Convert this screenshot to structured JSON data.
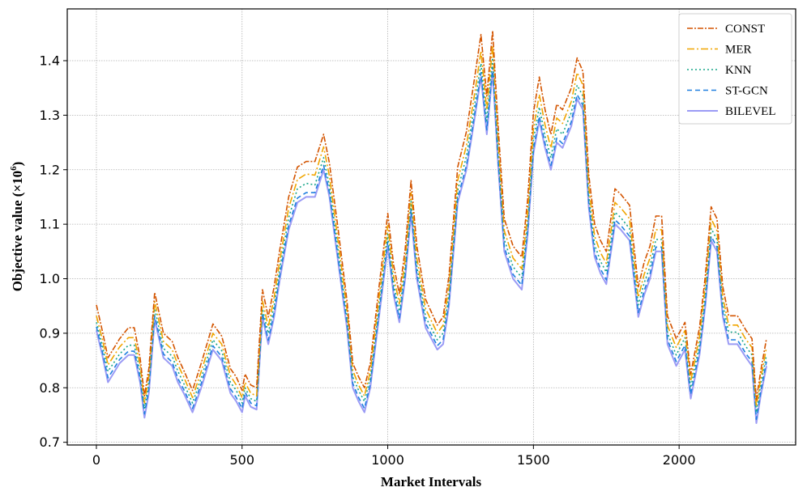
{
  "chart_data": {
    "type": "line",
    "title": "",
    "xlabel": "Market Intervals",
    "ylabel": "Objective value (×10",
    "ylabel_exp": "6",
    "ylabel_close": ")",
    "xlim": [
      -100,
      2400
    ],
    "ylim": [
      0.695,
      1.495
    ],
    "x_ticks": [
      0,
      500,
      1000,
      1500,
      2000
    ],
    "y_ticks": [
      0.7,
      0.8,
      0.9,
      1.0,
      1.1,
      1.2,
      1.3,
      1.4
    ],
    "grid": true,
    "legend_position": "top-right",
    "x": [
      0,
      20,
      40,
      80,
      110,
      130,
      150,
      165,
      180,
      200,
      230,
      260,
      280,
      300,
      330,
      360,
      400,
      430,
      460,
      480,
      500,
      510,
      530,
      550,
      570,
      590,
      610,
      630,
      660,
      690,
      720,
      750,
      780,
      800,
      830,
      860,
      880,
      900,
      920,
      940,
      970,
      1000,
      1020,
      1040,
      1060,
      1080,
      1100,
      1130,
      1170,
      1190,
      1210,
      1240,
      1270,
      1300,
      1320,
      1340,
      1360,
      1380,
      1400,
      1430,
      1460,
      1480,
      1500,
      1520,
      1540,
      1560,
      1580,
      1600,
      1630,
      1650,
      1670,
      1690,
      1710,
      1730,
      1750,
      1780,
      1800,
      1830,
      1860,
      1880,
      1900,
      1920,
      1940,
      1960,
      1990,
      2020,
      2040,
      2070,
      2090,
      2110,
      2130,
      2150,
      2170,
      2200,
      2230,
      2250,
      2265,
      2280,
      2300
    ],
    "series": [
      {
        "name": "BILEVEL",
        "color": "#9b9bf5",
        "dash": "solid",
        "values": [
          0.905,
          0.86,
          0.81,
          0.845,
          0.86,
          0.86,
          0.81,
          0.745,
          0.79,
          0.925,
          0.855,
          0.84,
          0.81,
          0.79,
          0.755,
          0.8,
          0.87,
          0.85,
          0.79,
          0.775,
          0.755,
          0.785,
          0.765,
          0.76,
          0.93,
          0.88,
          0.93,
          1.0,
          1.09,
          1.14,
          1.15,
          1.15,
          1.2,
          1.15,
          1.03,
          0.91,
          0.8,
          0.775,
          0.755,
          0.8,
          0.93,
          1.06,
          0.97,
          0.92,
          1.0,
          1.12,
          1.0,
          0.91,
          0.87,
          0.88,
          0.95,
          1.14,
          1.2,
          1.3,
          1.37,
          1.265,
          1.38,
          1.2,
          1.05,
          1.0,
          0.98,
          1.08,
          1.23,
          1.29,
          1.24,
          1.2,
          1.25,
          1.24,
          1.28,
          1.33,
          1.31,
          1.13,
          1.04,
          1.01,
          0.99,
          1.1,
          1.09,
          1.07,
          0.93,
          0.97,
          1.0,
          1.05,
          1.05,
          0.88,
          0.84,
          0.87,
          0.78,
          0.86,
          0.95,
          1.07,
          1.05,
          0.93,
          0.88,
          0.88,
          0.855,
          0.84,
          0.735,
          0.785,
          0.84
        ]
      },
      {
        "name": "ST-GCN",
        "color": "#1f7fe0",
        "dash": "6,4",
        "values": [
          0.912,
          0.867,
          0.818,
          0.852,
          0.867,
          0.867,
          0.818,
          0.752,
          0.798,
          0.932,
          0.862,
          0.847,
          0.817,
          0.797,
          0.762,
          0.808,
          0.877,
          0.857,
          0.798,
          0.782,
          0.762,
          0.792,
          0.772,
          0.767,
          0.937,
          0.887,
          0.938,
          1.008,
          1.098,
          1.148,
          1.158,
          1.158,
          1.208,
          1.158,
          1.038,
          0.918,
          0.808,
          0.782,
          0.762,
          0.807,
          0.938,
          1.068,
          0.978,
          0.928,
          1.008,
          1.128,
          1.008,
          0.918,
          0.877,
          0.888,
          0.958,
          1.148,
          1.208,
          1.308,
          1.378,
          1.273,
          1.388,
          1.208,
          1.058,
          1.008,
          0.988,
          1.088,
          1.238,
          1.298,
          1.248,
          1.208,
          1.258,
          1.248,
          1.288,
          1.338,
          1.318,
          1.138,
          1.048,
          1.018,
          0.998,
          1.108,
          1.098,
          1.078,
          0.938,
          0.978,
          1.008,
          1.058,
          1.058,
          0.888,
          0.848,
          0.878,
          0.788,
          0.868,
          0.958,
          1.078,
          1.058,
          0.938,
          0.888,
          0.888,
          0.862,
          0.848,
          0.742,
          0.792,
          0.848
        ]
      },
      {
        "name": "KNN",
        "color": "#17a589",
        "dash": "2,3",
        "values": [
          0.92,
          0.878,
          0.83,
          0.862,
          0.878,
          0.878,
          0.83,
          0.762,
          0.81,
          0.945,
          0.872,
          0.858,
          0.83,
          0.808,
          0.772,
          0.818,
          0.888,
          0.868,
          0.81,
          0.795,
          0.772,
          0.8,
          0.78,
          0.775,
          0.945,
          0.9,
          0.95,
          1.02,
          1.112,
          1.165,
          1.175,
          1.172,
          1.222,
          1.17,
          1.052,
          0.93,
          0.82,
          0.795,
          0.775,
          0.818,
          0.95,
          1.082,
          0.99,
          0.94,
          1.02,
          1.142,
          1.022,
          0.93,
          0.888,
          0.9,
          0.97,
          1.162,
          1.225,
          1.325,
          1.395,
          1.29,
          1.405,
          1.225,
          1.072,
          1.022,
          1.002,
          1.102,
          1.255,
          1.315,
          1.262,
          1.222,
          1.275,
          1.265,
          1.305,
          1.355,
          1.335,
          1.152,
          1.062,
          1.032,
          1.012,
          1.122,
          1.112,
          1.092,
          0.952,
          0.992,
          1.022,
          1.072,
          1.072,
          0.9,
          0.86,
          0.892,
          0.8,
          0.88,
          0.972,
          1.092,
          1.072,
          0.952,
          0.902,
          0.902,
          0.875,
          0.86,
          0.755,
          0.805,
          0.86
        ]
      },
      {
        "name": "MER",
        "color": "#f0a500",
        "dash": "9,3,2,3",
        "values": [
          0.932,
          0.89,
          0.842,
          0.875,
          0.892,
          0.892,
          0.842,
          0.772,
          0.822,
          0.958,
          0.885,
          0.87,
          0.842,
          0.82,
          0.782,
          0.83,
          0.9,
          0.88,
          0.822,
          0.805,
          0.782,
          0.81,
          0.79,
          0.785,
          0.96,
          0.912,
          0.965,
          1.035,
          1.13,
          1.182,
          1.192,
          1.19,
          1.242,
          1.188,
          1.068,
          0.944,
          0.832,
          0.805,
          0.785,
          0.83,
          0.965,
          1.098,
          1.005,
          0.954,
          1.035,
          1.158,
          1.038,
          0.945,
          0.9,
          0.915,
          0.985,
          1.18,
          1.245,
          1.345,
          1.418,
          1.31,
          1.428,
          1.245,
          1.088,
          1.038,
          1.018,
          1.12,
          1.275,
          1.338,
          1.282,
          1.24,
          1.295,
          1.285,
          1.325,
          1.378,
          1.355,
          1.168,
          1.078,
          1.048,
          1.028,
          1.14,
          1.13,
          1.11,
          0.966,
          1.008,
          1.038,
          1.09,
          1.09,
          0.914,
          0.874,
          0.905,
          0.812,
          0.894,
          0.988,
          1.11,
          1.088,
          0.966,
          0.915,
          0.915,
          0.888,
          0.874,
          0.765,
          0.816,
          0.874
        ]
      },
      {
        "name": "CONST",
        "color": "#d35400",
        "dash": "7,2,2,2",
        "values": [
          0.952,
          0.905,
          0.855,
          0.89,
          0.91,
          0.91,
          0.855,
          0.785,
          0.835,
          0.975,
          0.9,
          0.885,
          0.855,
          0.832,
          0.795,
          0.845,
          0.917,
          0.895,
          0.835,
          0.82,
          0.795,
          0.825,
          0.805,
          0.8,
          0.98,
          0.93,
          0.985,
          1.055,
          1.15,
          1.205,
          1.215,
          1.215,
          1.265,
          1.212,
          1.09,
          0.96,
          0.845,
          0.82,
          0.8,
          0.845,
          0.985,
          1.12,
          1.025,
          0.972,
          1.055,
          1.18,
          1.06,
          0.962,
          0.915,
          0.93,
          1.005,
          1.205,
          1.27,
          1.375,
          1.448,
          1.335,
          1.455,
          1.27,
          1.11,
          1.06,
          1.04,
          1.145,
          1.305,
          1.37,
          1.31,
          1.265,
          1.32,
          1.31,
          1.35,
          1.405,
          1.38,
          1.19,
          1.1,
          1.07,
          1.05,
          1.165,
          1.155,
          1.135,
          0.985,
          1.03,
          1.06,
          1.115,
          1.115,
          0.932,
          0.89,
          0.92,
          0.825,
          0.91,
          1.005,
          1.132,
          1.11,
          0.985,
          0.932,
          0.932,
          0.905,
          0.89,
          0.778,
          0.83,
          0.89
        ]
      }
    ],
    "legend": [
      {
        "name": "CONST",
        "color": "#d35400",
        "dash": "7,2,2,2"
      },
      {
        "name": "MER",
        "color": "#f0a500",
        "dash": "9,3,2,3"
      },
      {
        "name": "KNN",
        "color": "#17a589",
        "dash": "2,3"
      },
      {
        "name": "ST-GCN",
        "color": "#1f7fe0",
        "dash": "6,4"
      },
      {
        "name": "BILEVEL",
        "color": "#9b9bf5",
        "dash": "solid"
      }
    ]
  }
}
